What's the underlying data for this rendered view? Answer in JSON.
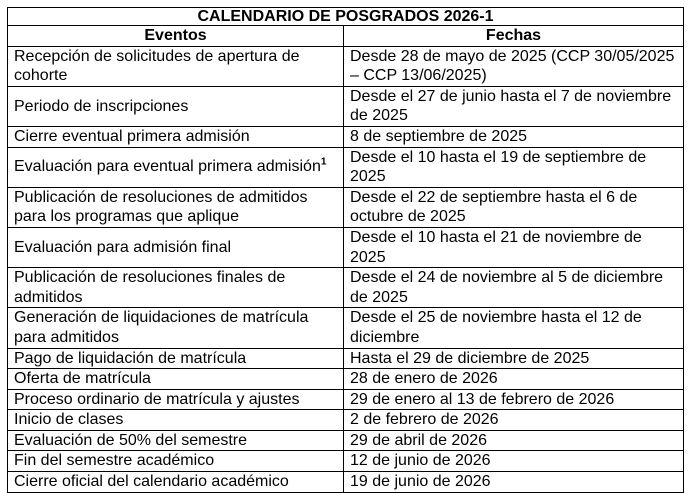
{
  "title": "CALENDARIO DE POSGRADOS 2026-1",
  "headers": {
    "events": "Eventos",
    "dates": "Fechas"
  },
  "rows": [
    {
      "event": "Recepción de solicitudes de apertura de cohorte",
      "date": "Desde 28 de mayo de 2025 (CCP 30/05/2025 – CCP 13/06/2025)"
    },
    {
      "event": "Periodo de inscripciones",
      "date": "Desde el 27 de junio hasta el 7 de noviembre de 2025"
    },
    {
      "event": "Cierre eventual primera admisión",
      "date": "8 de septiembre de 2025"
    },
    {
      "event": "Evaluación para eventual primera admisión",
      "footnote": "1",
      "date": "Desde el 10 hasta el 19 de septiembre de 2025"
    },
    {
      "event": "Publicación de resoluciones de admitidos para los programas que aplique",
      "date": "Desde el 22 de septiembre hasta el 6 de octubre de 2025"
    },
    {
      "event": "Evaluación para admisión final",
      "date": "Desde el 10 hasta el 21 de noviembre de 2025"
    },
    {
      "event": "Publicación de resoluciones finales de admitidos",
      "date": "Desde el 24 de noviembre al 5 de diciembre de 2025"
    },
    {
      "event": "Generación de liquidaciones de matrícula para admitidos",
      "date": "Desde el 25 de noviembre hasta el 12 de diciembre"
    },
    {
      "event": "Pago de liquidación de matrícula",
      "date": "Hasta el 29 de diciembre de 2025"
    },
    {
      "event": "Oferta de matrícula",
      "date": "28 de enero de 2026"
    },
    {
      "event": "Proceso ordinario de matrícula y ajustes",
      "date": "29 de enero al 13 de febrero de 2026"
    },
    {
      "event": "Inicio de clases",
      "date": "2 de febrero de 2026"
    },
    {
      "event": "Evaluación de 50% del semestre",
      "date": "29 de abril de 2026"
    },
    {
      "event": "Fin del semestre académico",
      "date": "12 de junio de 2026"
    },
    {
      "event": "Cierre oficial del calendario académico",
      "date": "19 de junio de 2026"
    }
  ]
}
